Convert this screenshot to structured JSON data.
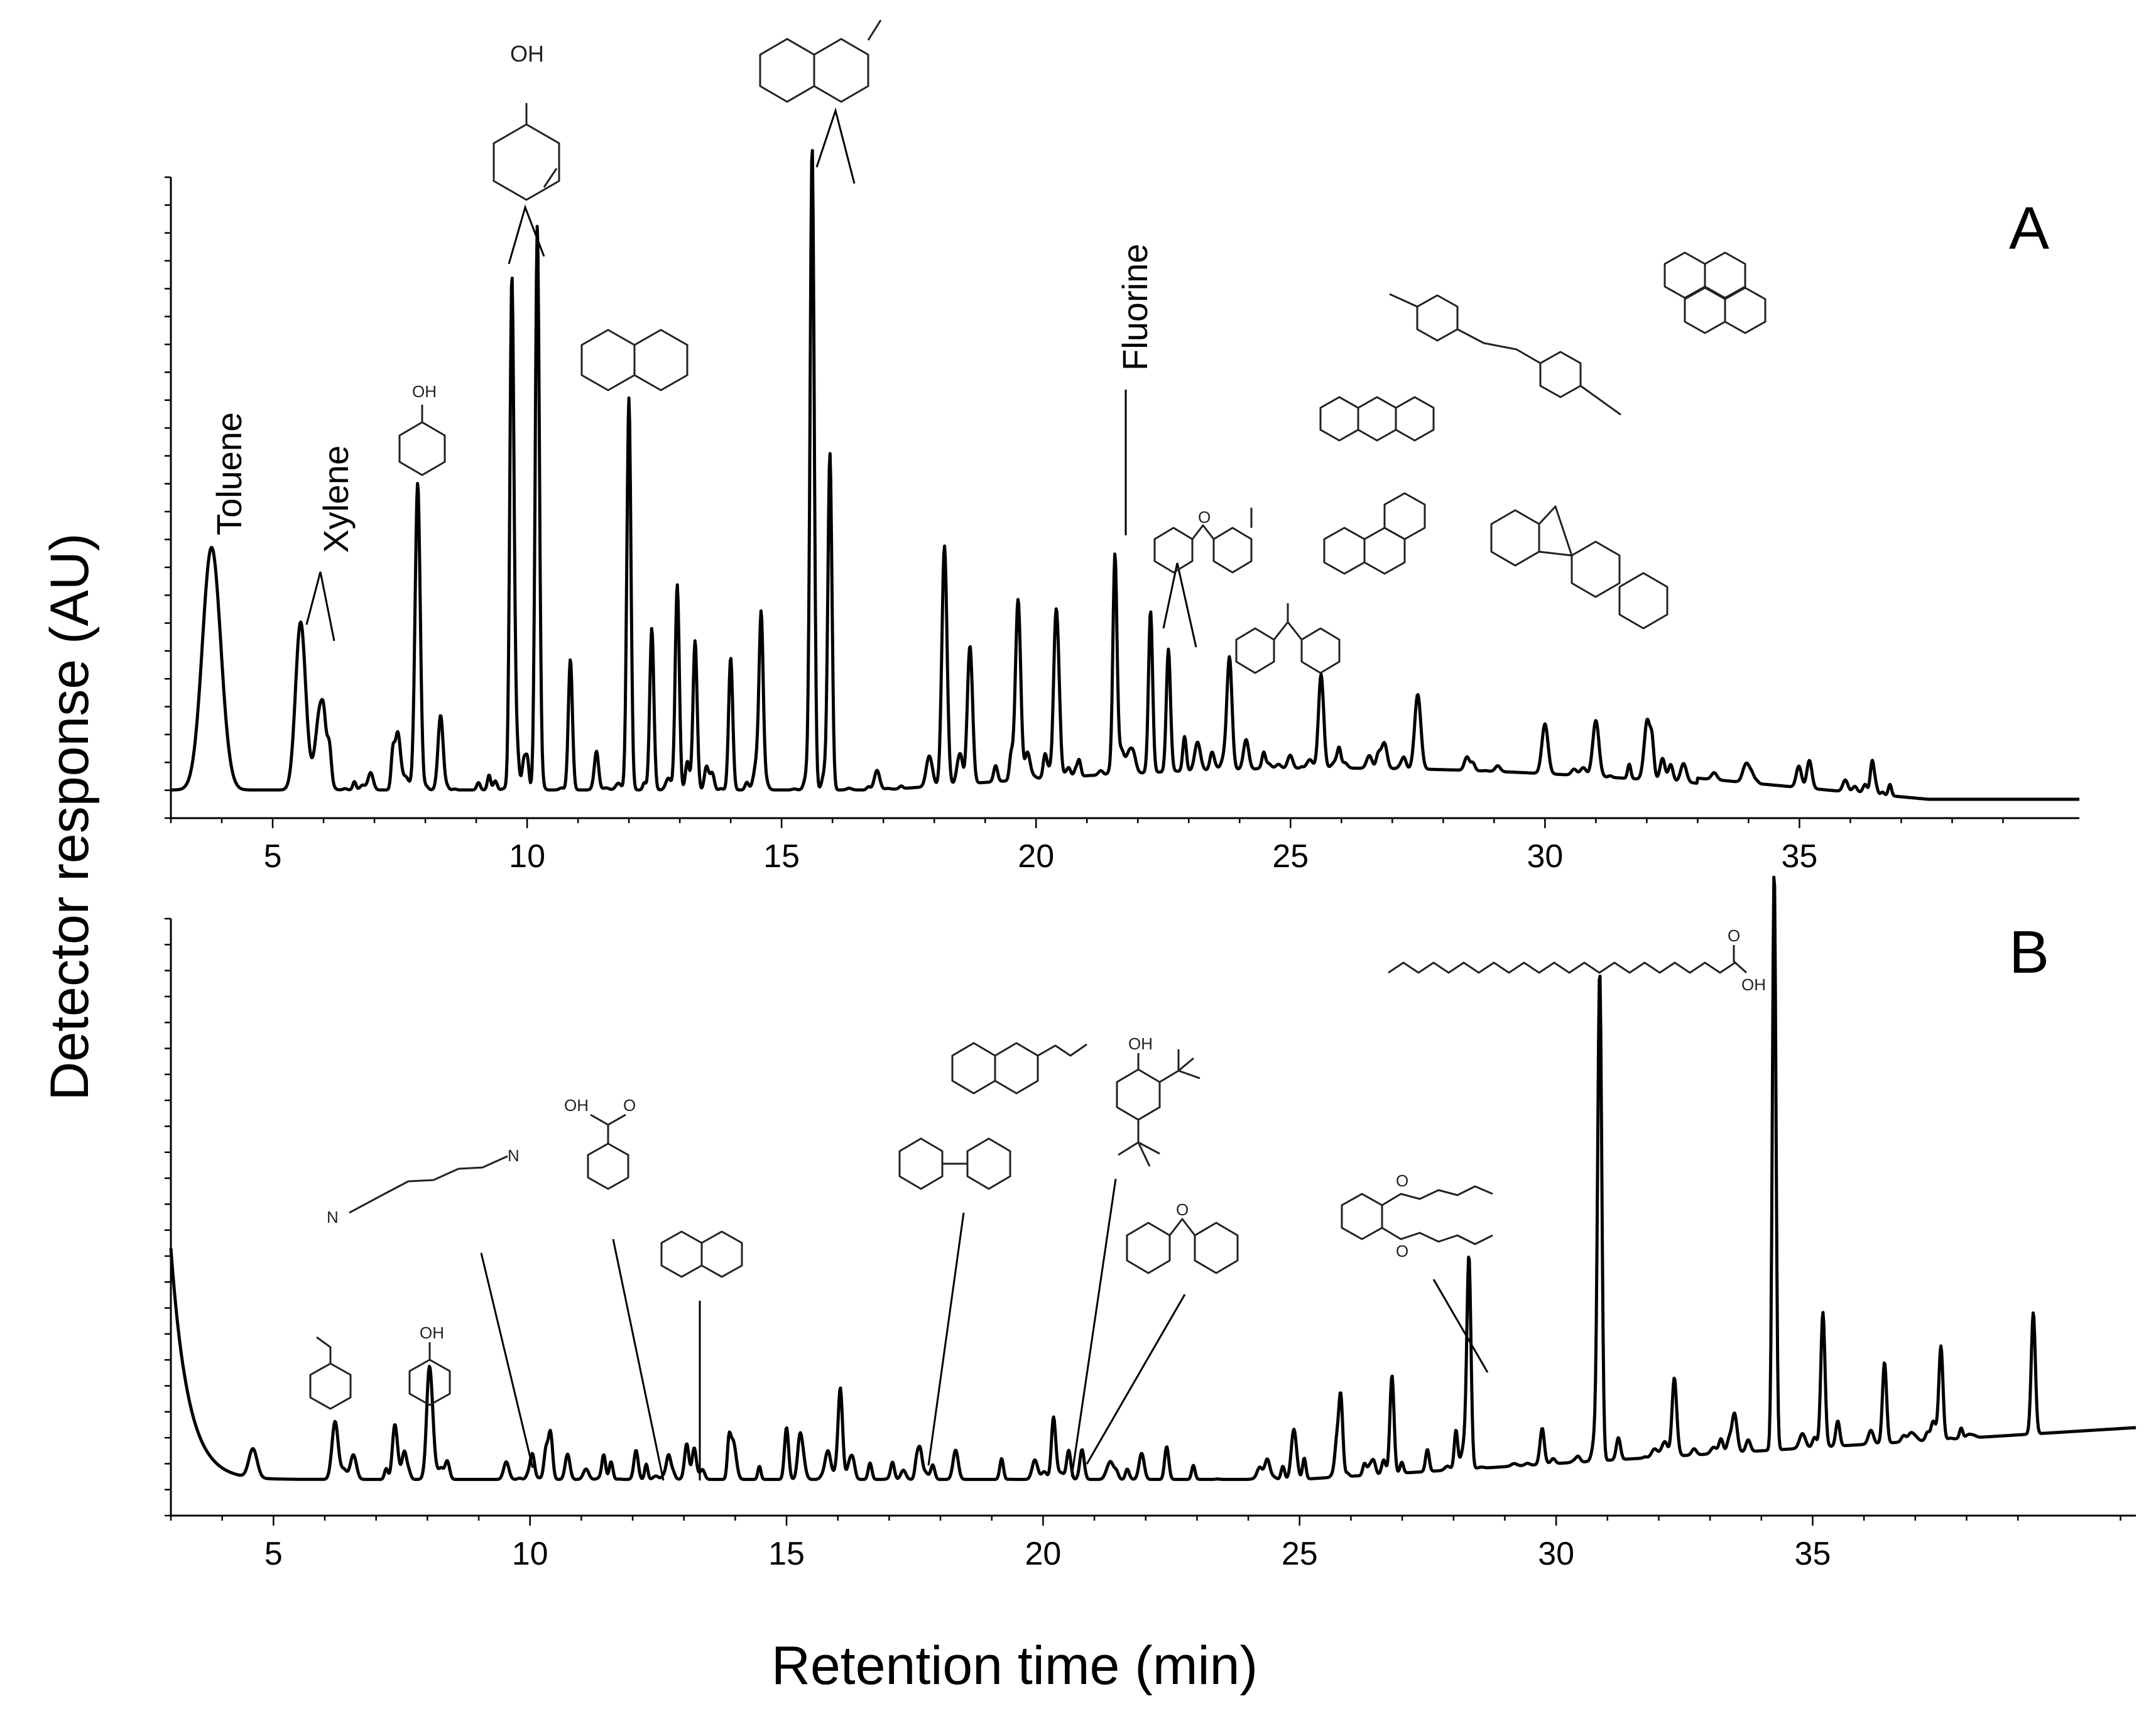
{
  "chart_data": [
    {
      "type": "line",
      "panel": "A",
      "xlabel": "Retention time (min)",
      "ylabel": "Detector response (AU)",
      "xlim": [
        3,
        40.5
      ],
      "ylim": [
        0,
        100
      ],
      "x_ticks": [
        "5",
        "10",
        "15",
        "20",
        "25",
        "30",
        "35"
      ],
      "peaks": [
        {
          "t": 3.8,
          "h": 39,
          "w": 0.18,
          "label": "Toluene"
        },
        {
          "t": 5.55,
          "h": 27,
          "w": 0.1,
          "label": "Xylene"
        },
        {
          "t": 5.95,
          "h": 14,
          "w": 0.1,
          "label": ""
        },
        {
          "t": 7.45,
          "h": 8,
          "w": 0.05,
          "label": ""
        },
        {
          "t": 7.85,
          "h": 49,
          "w": 0.05,
          "label": "phenol"
        },
        {
          "t": 8.3,
          "h": 12,
          "w": 0.05,
          "label": ""
        },
        {
          "t": 9.7,
          "h": 80,
          "w": 0.04,
          "label": "cresol"
        },
        {
          "t": 10.2,
          "h": 88,
          "w": 0.04,
          "label": "cresol"
        },
        {
          "t": 10.85,
          "h": 21,
          "w": 0.04,
          "label": ""
        },
        {
          "t": 12.0,
          "h": 63,
          "w": 0.04,
          "label": "naphthalene"
        },
        {
          "t": 12.45,
          "h": 26,
          "w": 0.04,
          "label": ""
        },
        {
          "t": 12.95,
          "h": 33,
          "w": 0.04,
          "label": ""
        },
        {
          "t": 13.3,
          "h": 24,
          "w": 0.04,
          "label": ""
        },
        {
          "t": 14.0,
          "h": 21,
          "w": 0.04,
          "label": ""
        },
        {
          "t": 14.6,
          "h": 27,
          "w": 0.04,
          "label": ""
        },
        {
          "t": 15.6,
          "h": 100,
          "w": 0.04,
          "label": "methylnaphthalene"
        },
        {
          "t": 15.95,
          "h": 54,
          "w": 0.04,
          "label": "methylnaphthalene"
        },
        {
          "t": 18.2,
          "h": 38,
          "w": 0.05,
          "label": ""
        },
        {
          "t": 18.7,
          "h": 22,
          "w": 0.05,
          "label": ""
        },
        {
          "t": 19.65,
          "h": 25,
          "w": 0.05,
          "label": ""
        },
        {
          "t": 20.4,
          "h": 18,
          "w": 0.05,
          "label": ""
        },
        {
          "t": 21.55,
          "h": 35,
          "w": 0.04,
          "label": "Fluorine"
        },
        {
          "t": 22.25,
          "h": 26,
          "w": 0.04,
          "label": "methyldibenzofuran"
        },
        {
          "t": 22.6,
          "h": 19,
          "w": 0.04,
          "label": ""
        },
        {
          "t": 23.8,
          "h": 18,
          "w": 0.05,
          "label": "methylfluorene"
        },
        {
          "t": 25.6,
          "h": 15,
          "w": 0.05,
          "label": "anthracene/phenanthrene"
        },
        {
          "t": 27.5,
          "h": 12,
          "w": 0.06,
          "label": ""
        },
        {
          "t": 30.0,
          "h": 8,
          "w": 0.06,
          "label": "dimethylstilbene"
        },
        {
          "t": 31.0,
          "h": 9,
          "w": 0.06,
          "label": "pyrene"
        },
        {
          "t": 32.0,
          "h": 7,
          "w": 0.06,
          "label": "benzofluorene"
        }
      ]
    },
    {
      "type": "line",
      "panel": "B",
      "xlabel": "Retention time (min)",
      "ylabel": "Detector response (AU)",
      "xlim": [
        3,
        41.3
      ],
      "ylim": [
        0,
        100
      ],
      "x_ticks": [
        "5",
        "10",
        "15",
        "20",
        "25",
        "30",
        "35"
      ],
      "peaks": [
        {
          "t": 4.6,
          "h": 5,
          "w": 0.08,
          "label": ""
        },
        {
          "t": 6.2,
          "h": 10,
          "w": 0.06,
          "label": "styrene"
        },
        {
          "t": 8.05,
          "h": 18,
          "w": 0.06,
          "label": "phenol"
        },
        {
          "t": 10.05,
          "h": 4,
          "w": 0.04,
          "label": "hexenedinitrile"
        },
        {
          "t": 10.4,
          "h": 8,
          "w": 0.04,
          "label": ""
        },
        {
          "t": 12.7,
          "h": 4,
          "w": 0.04,
          "label": "benzoic acid"
        },
        {
          "t": 13.2,
          "h": 5,
          "w": 0.04,
          "label": "naphthalene"
        },
        {
          "t": 15.0,
          "h": 9,
          "w": 0.04,
          "label": ""
        },
        {
          "t": 16.05,
          "h": 12,
          "w": 0.04,
          "label": ""
        },
        {
          "t": 17.6,
          "h": 5,
          "w": 0.04,
          "label": "biphenyl"
        },
        {
          "t": 20.2,
          "h": 9,
          "w": 0.04,
          "label": "vinylnaphthalene / di-tert-butylphenol"
        },
        {
          "t": 20.5,
          "h": 5,
          "w": 0.04,
          "label": "dibenzofuran"
        },
        {
          "t": 25.8,
          "h": 14,
          "w": 0.04,
          "label": ""
        },
        {
          "t": 26.8,
          "h": 17,
          "w": 0.04,
          "label": ""
        },
        {
          "t": 28.3,
          "h": 36,
          "w": 0.04,
          "label": "dibutyl phthalate"
        },
        {
          "t": 30.85,
          "h": 84,
          "w": 0.04,
          "label": ""
        },
        {
          "t": 32.3,
          "h": 9,
          "w": 0.04,
          "label": ""
        },
        {
          "t": 34.25,
          "h": 100,
          "w": 0.035,
          "label": "palmitic acid"
        },
        {
          "t": 35.2,
          "h": 22,
          "w": 0.04,
          "label": ""
        },
        {
          "t": 36.4,
          "h": 14,
          "w": 0.04,
          "label": ""
        },
        {
          "t": 37.5,
          "h": 16,
          "w": 0.04,
          "label": ""
        },
        {
          "t": 39.3,
          "h": 21,
          "w": 0.04,
          "label": ""
        }
      ]
    }
  ],
  "labels": {
    "panel_a": "A",
    "panel_b": "B",
    "toluene": "Toluene",
    "xylene": "Xylene",
    "fluorine": "Fluorine",
    "oh": "OH",
    "o": "O",
    "n": "N"
  }
}
